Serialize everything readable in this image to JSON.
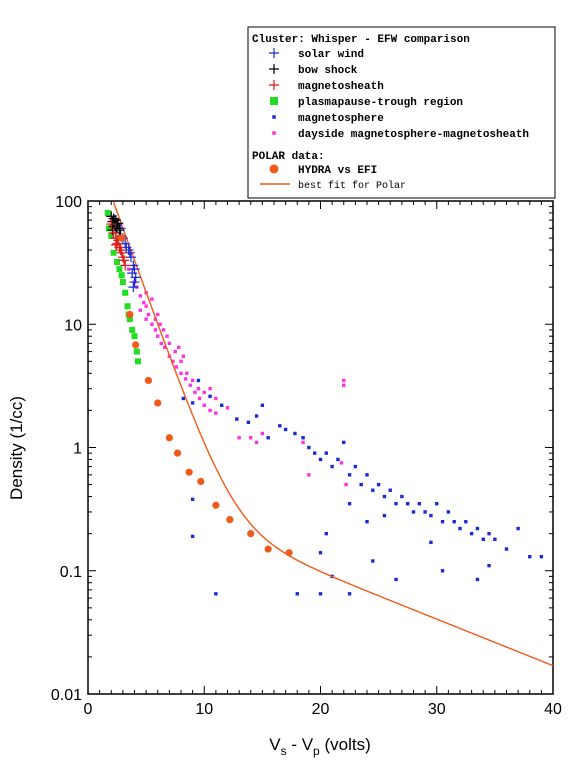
{
  "chart_data": {
    "type": "scatter",
    "xlabel_main": "V",
    "xlabel_sub1": "s",
    "xlabel_mid": " - V",
    "xlabel_sub2": "p",
    "xlabel_tail": " (volts)",
    "ylabel": "Density (1/cc)",
    "xlim": [
      0,
      40
    ],
    "ylim": [
      0.01,
      100
    ],
    "yscale": "log",
    "x_ticks": [
      0,
      10,
      20,
      30,
      40
    ],
    "x_tick_labels": [
      "0",
      "10",
      "20",
      "30",
      "40"
    ],
    "y_ticks": [
      0.01,
      0.1,
      1,
      10,
      100
    ],
    "y_tick_labels": [
      "0.01",
      "0.1",
      "1",
      "10",
      "100"
    ],
    "legend_title": "Cluster: Whisper - EFW comparison",
    "legend_section2": "POLAR data:",
    "legend_position": "top-right",
    "series": [
      {
        "name": "solar wind",
        "marker": "plus",
        "color": "#1a2bd6",
        "points": [
          [
            2.3,
            70
          ],
          [
            2.5,
            65
          ],
          [
            2.8,
            60
          ],
          [
            3.0,
            50
          ],
          [
            3.2,
            45
          ],
          [
            3.5,
            40
          ],
          [
            3.7,
            35
          ],
          [
            3.9,
            30
          ],
          [
            4.0,
            28
          ],
          [
            3.6,
            38
          ],
          [
            3.3,
            42
          ],
          [
            4.1,
            24
          ],
          [
            4.0,
            22
          ],
          [
            3.8,
            26
          ],
          [
            3.9,
            20
          ]
        ]
      },
      {
        "name": "bow shock",
        "marker": "plus",
        "color": "#000000",
        "points": [
          [
            2.0,
            75
          ],
          [
            2.1,
            68
          ],
          [
            2.2,
            72
          ],
          [
            2.3,
            64
          ],
          [
            2.4,
            70
          ],
          [
            2.5,
            60
          ],
          [
            2.6,
            66
          ],
          [
            2.7,
            58
          ],
          [
            2.2,
            62
          ],
          [
            2.4,
            55
          ],
          [
            2.8,
            52
          ],
          [
            2.1,
            58
          ]
        ]
      },
      {
        "name": "magnetosheath",
        "marker": "plus",
        "color": "#e01818",
        "points": [
          [
            2.2,
            55
          ],
          [
            2.4,
            50
          ],
          [
            2.5,
            45
          ],
          [
            2.7,
            42
          ],
          [
            2.9,
            38
          ],
          [
            3.0,
            35
          ],
          [
            2.6,
            48
          ],
          [
            2.8,
            40
          ],
          [
            3.1,
            33
          ],
          [
            2.4,
            44
          ],
          [
            3.2,
            30
          ],
          [
            2.0,
            65
          ]
        ]
      },
      {
        "name": "plasmapause-trough region",
        "marker": "square",
        "color": "#22dd22",
        "points": [
          [
            1.7,
            80
          ],
          [
            1.8,
            60
          ],
          [
            2.0,
            52
          ],
          [
            2.2,
            38
          ],
          [
            2.5,
            32
          ],
          [
            2.7,
            28
          ],
          [
            3.0,
            22
          ],
          [
            3.2,
            18
          ],
          [
            3.5,
            12
          ],
          [
            3.6,
            11
          ],
          [
            3.8,
            9
          ],
          [
            4.0,
            8
          ],
          [
            4.2,
            6
          ],
          [
            4.3,
            5
          ],
          [
            3.4,
            14
          ],
          [
            2.9,
            25
          ]
        ]
      },
      {
        "name": "magnetosphere",
        "marker": "dot",
        "color": "#1a2bd6",
        "points": [
          [
            8.2,
            2.5
          ],
          [
            9.0,
            2.3
          ],
          [
            9.5,
            3.5
          ],
          [
            10.5,
            2.6
          ],
          [
            11.5,
            2.2
          ],
          [
            12.8,
            1.7
          ],
          [
            13.8,
            1.6
          ],
          [
            14.5,
            1.8
          ],
          [
            15.0,
            2.2
          ],
          [
            15.5,
            1.2
          ],
          [
            16.5,
            1.5
          ],
          [
            17.0,
            1.4
          ],
          [
            17.8,
            1.3
          ],
          [
            18.5,
            1.2
          ],
          [
            19.0,
            1.0
          ],
          [
            19.5,
            0.9
          ],
          [
            20.0,
            0.8
          ],
          [
            20.5,
            0.9
          ],
          [
            21.0,
            0.7
          ],
          [
            21.5,
            0.8
          ],
          [
            22.0,
            1.1
          ],
          [
            22.5,
            0.6
          ],
          [
            23.0,
            0.7
          ],
          [
            23.5,
            0.5
          ],
          [
            24.0,
            0.6
          ],
          [
            24.5,
            0.45
          ],
          [
            25.0,
            0.5
          ],
          [
            25.5,
            0.4
          ],
          [
            26.0,
            0.45
          ],
          [
            26.5,
            0.35
          ],
          [
            27.0,
            0.4
          ],
          [
            27.5,
            0.35
          ],
          [
            28.0,
            0.3
          ],
          [
            28.5,
            0.35
          ],
          [
            29.0,
            0.3
          ],
          [
            29.5,
            0.28
          ],
          [
            30.0,
            0.35
          ],
          [
            30.5,
            0.25
          ],
          [
            31.0,
            0.3
          ],
          [
            31.5,
            0.25
          ],
          [
            32.0,
            0.22
          ],
          [
            32.5,
            0.25
          ],
          [
            33.0,
            0.2
          ],
          [
            33.5,
            0.22
          ],
          [
            34.0,
            0.18
          ],
          [
            34.5,
            0.2
          ],
          [
            35.0,
            0.18
          ],
          [
            36.0,
            0.15
          ],
          [
            37.0,
            0.22
          ],
          [
            38.0,
            0.13
          ],
          [
            39.0,
            0.13
          ],
          [
            24.0,
            0.25
          ],
          [
            25.5,
            0.28
          ],
          [
            22.5,
            0.35
          ],
          [
            20.5,
            0.2
          ],
          [
            20.0,
            0.14
          ],
          [
            21.0,
            0.09
          ],
          [
            22.5,
            0.065
          ],
          [
            20.0,
            0.065
          ],
          [
            18.0,
            0.065
          ],
          [
            11.0,
            0.065
          ],
          [
            9.0,
            0.19
          ],
          [
            9.0,
            0.38
          ],
          [
            24.5,
            0.12
          ],
          [
            26.5,
            0.085
          ],
          [
            29.5,
            0.17
          ],
          [
            30.5,
            0.1
          ],
          [
            33.5,
            0.085
          ],
          [
            34.5,
            0.11
          ]
        ]
      },
      {
        "name": "dayside magnetosphere-magnetosheath",
        "marker": "dot",
        "color": "#ff33dd",
        "points": [
          [
            3.5,
            28
          ],
          [
            4.0,
            22
          ],
          [
            4.2,
            20
          ],
          [
            4.5,
            17
          ],
          [
            4.8,
            15
          ],
          [
            5.0,
            14
          ],
          [
            5.2,
            12
          ],
          [
            5.5,
            10
          ],
          [
            5.8,
            9
          ],
          [
            6.0,
            8
          ],
          [
            6.3,
            7
          ],
          [
            6.6,
            6.5
          ],
          [
            7.0,
            5.5
          ],
          [
            7.3,
            5
          ],
          [
            7.6,
            4.5
          ],
          [
            8.0,
            4
          ],
          [
            8.4,
            3.6
          ],
          [
            8.8,
            3.2
          ],
          [
            9.2,
            2.8
          ],
          [
            9.6,
            2.5
          ],
          [
            10.0,
            2.2
          ],
          [
            10.5,
            2
          ],
          [
            11.0,
            1.9
          ],
          [
            5.0,
            18
          ],
          [
            5.5,
            16
          ],
          [
            6.0,
            12
          ],
          [
            6.5,
            9
          ],
          [
            7.0,
            7
          ],
          [
            7.5,
            6
          ],
          [
            8.0,
            5
          ],
          [
            8.5,
            4
          ],
          [
            9.0,
            3.5
          ],
          [
            9.5,
            3
          ],
          [
            4.5,
            13
          ],
          [
            5.0,
            11
          ],
          [
            5.8,
            11
          ],
          [
            6.2,
            10
          ],
          [
            6.8,
            8
          ],
          [
            7.8,
            6.5
          ],
          [
            8.2,
            5.5
          ],
          [
            10.5,
            3
          ],
          [
            11.0,
            2.5
          ],
          [
            14.0,
            1.2
          ],
          [
            14.5,
            1.1
          ],
          [
            15.0,
            1.3
          ],
          [
            13.0,
            1.2
          ],
          [
            22.0,
            3.5
          ],
          [
            22.0,
            3.2
          ],
          [
            21.8,
            0.75
          ],
          [
            22.2,
            0.5
          ],
          [
            19.0,
            0.6
          ],
          [
            18.5,
            1.1
          ],
          [
            10.0,
            2.8
          ],
          [
            12.0,
            2.1
          ]
        ]
      },
      {
        "name": "HYDRA vs EFI",
        "marker": "circle",
        "color": "#f05a1a",
        "points": [
          [
            2.9,
            50
          ],
          [
            3.6,
            12
          ],
          [
            4.1,
            6.8
          ],
          [
            5.2,
            3.5
          ],
          [
            6.0,
            2.3
          ],
          [
            7.0,
            1.2
          ],
          [
            7.7,
            0.9
          ],
          [
            8.7,
            0.63
          ],
          [
            9.7,
            0.53
          ],
          [
            11.0,
            0.34
          ],
          [
            12.2,
            0.26
          ],
          [
            14.0,
            0.2
          ],
          [
            15.5,
            0.15
          ],
          [
            17.3,
            0.14
          ]
        ]
      },
      {
        "name": "best fit for Polar",
        "marker": "line",
        "color": "#f05a1a",
        "fit_params": {
          "form": "n = A*exp(-(x-x0)/B) + C*exp(-x/D)",
          "A": 110,
          "x0": 2.0,
          "B": 1.65,
          "C": 0.55,
          "D": 11.5
        }
      }
    ]
  }
}
